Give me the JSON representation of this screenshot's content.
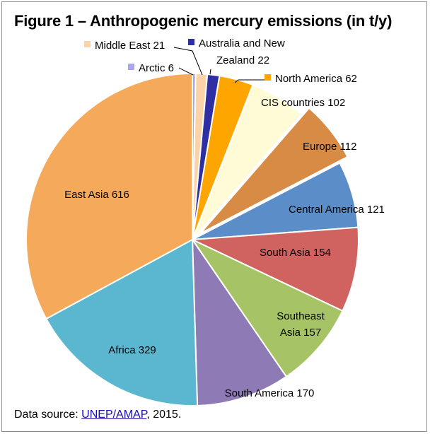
{
  "title": "Figure 1 – Anthropogenic mercury emissions (in t/y)",
  "source": {
    "prefix": "Data source: ",
    "link_text": "UNEP/AMAP",
    "suffix": ", 2015."
  },
  "chart_data": {
    "type": "pie",
    "title": "Figure 1 – Anthropogenic mercury emissions (in t/y)",
    "unit": "t/y",
    "slices": [
      {
        "label": "Arctic",
        "value": 6,
        "color": "#a9a6f0",
        "display": "Arctic 6"
      },
      {
        "label": "Middle East",
        "value": 21,
        "color": "#fcd3a8",
        "display": "Middle East 21"
      },
      {
        "label": "Australia and New Zealand",
        "value": 22,
        "color": "#2f2ea3",
        "display": "Australia and New Zealand 22"
      },
      {
        "label": "North America",
        "value": 62,
        "color": "#ffa500",
        "display": "North America 62"
      },
      {
        "label": "CIS countries",
        "value": 102,
        "color": "#fffbd6",
        "display": "CIS countries 102"
      },
      {
        "label": "Europe",
        "value": 112,
        "color": "#d78b45",
        "display": "Europe 112",
        "exploded": true
      },
      {
        "label": "Central America",
        "value": 121,
        "color": "#5b8ec9",
        "display": "Central America 121"
      },
      {
        "label": "South Asia",
        "value": 154,
        "color": "#d0625f",
        "display": "South Asia 154"
      },
      {
        "label": "Southeast Asia",
        "value": 157,
        "color": "#a6c466",
        "display": "Southeast Asia 157"
      },
      {
        "label": "South America",
        "value": 170,
        "color": "#8e7ab5",
        "display": "South America 170"
      },
      {
        "label": "Africa",
        "value": 329,
        "color": "#5ab7cf",
        "display": "Africa 329"
      },
      {
        "label": "East Asia",
        "value": 616,
        "color": "#f5a95a",
        "display": "East Asia 616"
      }
    ],
    "legend": "none",
    "start_angle": "12 o'clock, clockwise"
  }
}
